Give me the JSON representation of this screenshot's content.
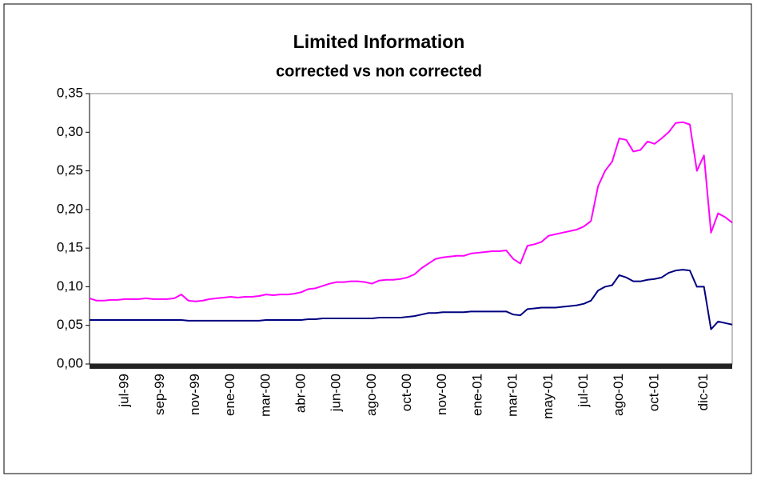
{
  "chart_data": {
    "type": "line",
    "title": "Limited Information",
    "subtitle": "corrected vs non corrected",
    "categories": [
      null,
      null,
      null,
      null,
      null,
      "jul-99",
      null,
      null,
      null,
      null,
      "sep-99",
      null,
      null,
      null,
      null,
      "nov-99",
      null,
      null,
      null,
      null,
      "ene-00",
      null,
      null,
      null,
      null,
      "mar-00",
      null,
      null,
      null,
      null,
      "abr-00",
      null,
      null,
      null,
      null,
      "jun-00",
      null,
      null,
      null,
      null,
      "ago-00",
      null,
      null,
      null,
      null,
      "oct-00",
      null,
      null,
      null,
      null,
      "nov-00",
      null,
      null,
      null,
      null,
      "ene-01",
      null,
      null,
      null,
      null,
      "mar-01",
      null,
      null,
      null,
      null,
      "may-01",
      null,
      null,
      null,
      null,
      "jul-01",
      null,
      null,
      null,
      null,
      "ago-01",
      null,
      null,
      null,
      null,
      "oct-01",
      null,
      null,
      null,
      null,
      null,
      null,
      "dic-01",
      null,
      null,
      null,
      null
    ],
    "series": [
      {
        "color": "#ff00ff",
        "values": [
          0.085,
          0.082,
          0.082,
          0.083,
          0.083,
          0.084,
          0.084,
          0.084,
          0.085,
          0.084,
          0.084,
          0.084,
          0.085,
          0.09,
          0.082,
          0.081,
          0.082,
          0.084,
          0.085,
          0.086,
          0.087,
          0.086,
          0.087,
          0.087,
          0.088,
          0.09,
          0.089,
          0.09,
          0.09,
          0.091,
          0.093,
          0.097,
          0.098,
          0.101,
          0.104,
          0.106,
          0.106,
          0.107,
          0.107,
          0.106,
          0.104,
          0.108,
          0.109,
          0.109,
          0.11,
          0.112,
          0.116,
          0.124,
          0.13,
          0.136,
          0.138,
          0.139,
          0.14,
          0.14,
          0.143,
          0.144,
          0.145,
          0.146,
          0.146,
          0.147,
          0.136,
          0.13,
          0.153,
          0.155,
          0.158,
          0.166,
          0.168,
          0.17,
          0.172,
          0.174,
          0.178,
          0.185,
          0.23,
          0.25,
          0.262,
          0.292,
          0.29,
          0.275,
          0.277,
          0.288,
          0.285,
          0.292,
          0.3,
          0.312,
          0.313,
          0.31,
          0.25,
          0.27,
          0.17,
          0.195,
          0.19,
          0.183
        ]
      },
      {
        "color": "#000080",
        "values": [
          0.057,
          0.057,
          0.057,
          0.057,
          0.057,
          0.057,
          0.057,
          0.057,
          0.057,
          0.057,
          0.057,
          0.057,
          0.057,
          0.057,
          0.056,
          0.056,
          0.056,
          0.056,
          0.056,
          0.056,
          0.056,
          0.056,
          0.056,
          0.056,
          0.056,
          0.057,
          0.057,
          0.057,
          0.057,
          0.057,
          0.057,
          0.058,
          0.058,
          0.059,
          0.059,
          0.059,
          0.059,
          0.059,
          0.059,
          0.059,
          0.059,
          0.06,
          0.06,
          0.06,
          0.06,
          0.061,
          0.062,
          0.064,
          0.066,
          0.066,
          0.067,
          0.067,
          0.067,
          0.067,
          0.068,
          0.068,
          0.068,
          0.068,
          0.068,
          0.068,
          0.064,
          0.063,
          0.071,
          0.072,
          0.073,
          0.073,
          0.073,
          0.074,
          0.075,
          0.076,
          0.078,
          0.082,
          0.095,
          0.1,
          0.102,
          0.115,
          0.112,
          0.107,
          0.107,
          0.109,
          0.11,
          0.112,
          0.118,
          0.121,
          0.122,
          0.121,
          0.1,
          0.1,
          0.045,
          0.055,
          0.053,
          0.051
        ]
      }
    ],
    "ylim": [
      0,
      0.35
    ],
    "yticks": [
      {
        "value": 0,
        "label": "0,00"
      },
      {
        "value": 0.05,
        "label": "0,05"
      },
      {
        "value": 0.1,
        "label": "0,10"
      },
      {
        "value": 0.15,
        "label": "0,15"
      },
      {
        "value": 0.2,
        "label": "0,20"
      },
      {
        "value": 0.25,
        "label": "0,25"
      },
      {
        "value": 0.3,
        "label": "0,30"
      },
      {
        "value": 0.35,
        "label": "0,35"
      }
    ],
    "grid": false
  }
}
